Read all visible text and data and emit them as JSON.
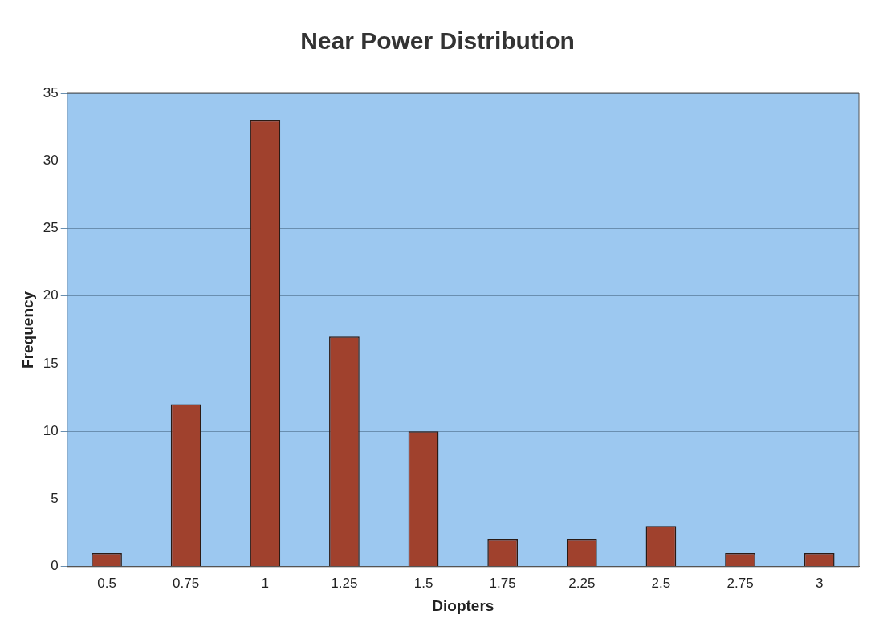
{
  "chart_data": {
    "type": "bar",
    "title": "Near Power Distribution",
    "xlabel": "Diopters",
    "ylabel": "Frequency",
    "categories": [
      "0.5",
      "0.75",
      "1",
      "1.25",
      "1.5",
      "1.75",
      "2.25",
      "2.5",
      "2.75",
      "3"
    ],
    "values": [
      1,
      12,
      33,
      17,
      10,
      2,
      2,
      3,
      1,
      1
    ],
    "color": "#a0412d",
    "ylim": [
      0,
      35
    ],
    "yticks": [
      0,
      5,
      10,
      15,
      20,
      25,
      30,
      35
    ],
    "grid": "y"
  }
}
